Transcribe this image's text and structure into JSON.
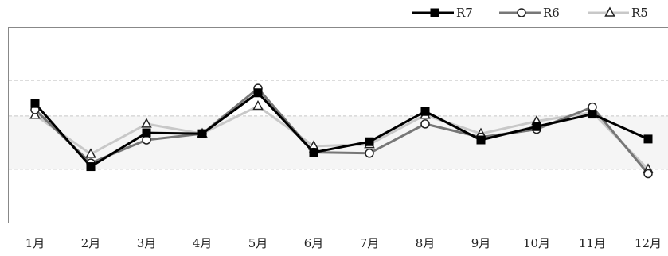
{
  "chart_data": {
    "type": "line",
    "categories": [
      "1月",
      "2月",
      "3月",
      "4月",
      "5月",
      "6月",
      "7月",
      "8月",
      "9月",
      "10月",
      "11月",
      "12月"
    ],
    "series": [
      {
        "name": "R7",
        "color": "#000000",
        "marker": "filled-square",
        "values": [
          0.74,
          0.03,
          0.41,
          0.4,
          0.86,
          0.19,
          0.31,
          0.65,
          0.33,
          0.48,
          0.62,
          0.34
        ]
      },
      {
        "name": "R6",
        "color": "#777777",
        "marker": "open-circle",
        "values": [
          0.67,
          0.07,
          0.33,
          0.4,
          0.91,
          0.19,
          0.18,
          0.51,
          0.36,
          0.45,
          0.7,
          -0.05
        ]
      },
      {
        "name": "R5",
        "color": "#c8c8c8",
        "marker": "open-triangle",
        "values": [
          0.61,
          0.17,
          0.51,
          0.4,
          0.71,
          0.26,
          0.28,
          0.61,
          0.4,
          0.54,
          0.64,
          0.0
        ]
      }
    ],
    "ylim": [
      -0.6,
      1.6
    ],
    "y_axis_labels_shown": false,
    "grid": "horizontal dashed",
    "band": "light grey shading between middle gridlines",
    "legend_position": "top-right"
  }
}
